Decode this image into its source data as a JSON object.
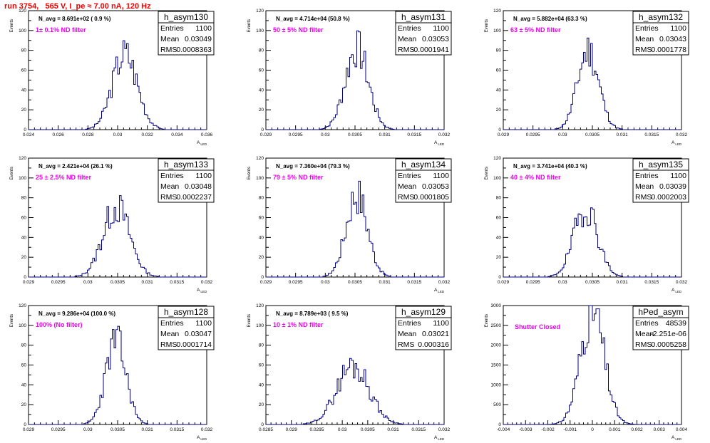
{
  "run_label": "run 3754,   565 V, I_pe ≈ 7.00 nA, 120 Hz",
  "chart_data": [
    {
      "type": "bar",
      "name": "h_asym130",
      "n_avg_text": "N_avg = 8.691e+02 ( 0.9 %)",
      "filter_text": "1± 0.1% ND filter",
      "stats": {
        "Entries": "1100",
        "Mean": "0.03049",
        "RMS": "0.0008363"
      },
      "xlabel": "A",
      "xlabel_sub": "LED",
      "ylabel": "Events",
      "xlim": [
        0.024,
        0.036
      ],
      "ylim": [
        0,
        120
      ],
      "xticks": [
        "0.024",
        "0.026",
        "0.028",
        "0.03",
        "0.032",
        "0.034",
        "0.036"
      ],
      "yticks": [
        "0",
        "20",
        "40",
        "60",
        "80",
        "100",
        "120"
      ],
      "x_center": 0.03049,
      "width": 0.0008363,
      "peak": 77,
      "seed": 3
    },
    {
      "type": "bar",
      "name": "h_asym131",
      "n_avg_text": "N_avg = 4.714e+04 (50.8 %)",
      "filter_text": "50 ± 5% ND filter",
      "stats": {
        "Entries": "1100",
        "Mean": "0.03053",
        "RMS": "0.0001941"
      },
      "xlabel": "A",
      "xlabel_sub": "LED",
      "ylabel": "Events",
      "xlim": [
        0.029,
        0.032
      ],
      "ylim": [
        0,
        120
      ],
      "xticks": [
        "0.029",
        "0.0295",
        "0.03",
        "0.0305",
        "0.031",
        "0.0315",
        "0.032"
      ],
      "yticks": [
        "0",
        "20",
        "40",
        "60",
        "80",
        "100",
        "120"
      ],
      "x_center": 0.03053,
      "width": 0.0001941,
      "peak": 82,
      "seed": 7
    },
    {
      "type": "bar",
      "name": "h_asym132",
      "n_avg_text": "N_avg = 5.882e+04 (63.3 %)",
      "filter_text": "63 ± 5% ND filter",
      "stats": {
        "Entries": "1100",
        "Mean": "0.03043",
        "RMS": "0.0001778"
      },
      "xlabel": "A",
      "xlabel_sub": "LED",
      "ylabel": "Events",
      "xlim": [
        0.029,
        0.032
      ],
      "ylim": [
        0,
        120
      ],
      "xticks": [
        "0.029",
        "0.0295",
        "0.03",
        "0.0305",
        "0.031",
        "0.0315",
        "0.032"
      ],
      "yticks": [
        "0",
        "20",
        "40",
        "60",
        "80",
        "100",
        "120"
      ],
      "x_center": 0.03043,
      "width": 0.0001778,
      "peak": 80,
      "seed": 11
    },
    {
      "type": "bar",
      "name": "h_asym133",
      "n_avg_text": "N_avg = 2.421e+04 (26.1 %)",
      "filter_text": "25 ± 2.5% ND filter",
      "stats": {
        "Entries": "1100",
        "Mean": "0.03048",
        "RMS": "0.0002237"
      },
      "xlabel": "A",
      "xlabel_sub": "LED",
      "ylabel": "Events",
      "xlim": [
        0.029,
        0.032
      ],
      "ylim": [
        0,
        120
      ],
      "xticks": [
        "0.029",
        "0.0295",
        "0.03",
        "0.0305",
        "0.031",
        "0.0315",
        "0.032"
      ],
      "yticks": [
        "0",
        "20",
        "40",
        "60",
        "80",
        "100",
        "120"
      ],
      "x_center": 0.03048,
      "width": 0.0002237,
      "peak": 71,
      "seed": 13
    },
    {
      "type": "bar",
      "name": "h_asym134",
      "n_avg_text": "N_avg = 7.360e+04 (79.3 %)",
      "filter_text": "79 ± 5% ND filter",
      "stats": {
        "Entries": "1100",
        "Mean": "0.03053",
        "RMS": "0.0001805"
      },
      "xlabel": "A",
      "xlabel_sub": "LED",
      "ylabel": "Events",
      "xlim": [
        0.029,
        0.032
      ],
      "ylim": [
        0,
        120
      ],
      "xticks": [
        "0.029",
        "0.0295",
        "0.03",
        "0.0305",
        "0.031",
        "0.0315",
        "0.032"
      ],
      "yticks": [
        "0",
        "20",
        "40",
        "60",
        "80",
        "100",
        "120"
      ],
      "x_center": 0.03053,
      "width": 0.0001805,
      "peak": 84,
      "seed": 17
    },
    {
      "type": "bar",
      "name": "h_asym135",
      "n_avg_text": "N_avg = 3.741e+04 (40.3 %)",
      "filter_text": "40 ± 4% ND filter",
      "stats": {
        "Entries": "1100",
        "Mean": "0.03039",
        "RMS": "0.0002003"
      },
      "xlabel": "A",
      "xlabel_sub": "LED",
      "ylabel": "Events",
      "xlim": [
        0.029,
        0.032
      ],
      "ylim": [
        0,
        120
      ],
      "xticks": [
        "0.029",
        "0.0295",
        "0.03",
        "0.0305",
        "0.031",
        "0.0315",
        "0.032"
      ],
      "yticks": [
        "0",
        "20",
        "40",
        "60",
        "80",
        "100",
        "120"
      ],
      "x_center": 0.03039,
      "width": 0.0002003,
      "peak": 70,
      "seed": 19
    },
    {
      "type": "bar",
      "name": "h_asym128",
      "n_avg_text": "N_avg = 9.286e+04 (100.0 %)",
      "filter_text": "100% (No filter)",
      "stats": {
        "Entries": "1100",
        "Mean": "0.03047",
        "RMS": "0.0001714"
      },
      "xlabel": "A",
      "xlabel_sub": "LED",
      "ylabel": "Events",
      "xlim": [
        0.029,
        0.032
      ],
      "ylim": [
        0,
        120
      ],
      "xticks": [
        "0.029",
        "0.0295",
        "0.03",
        "0.0305",
        "0.031",
        "0.0315",
        "0.032"
      ],
      "yticks": [
        "0",
        "20",
        "40",
        "60",
        "80",
        "100",
        "120"
      ],
      "x_center": 0.03047,
      "width": 0.0001714,
      "peak": 84,
      "seed": 23
    },
    {
      "type": "bar",
      "name": "h_asym129",
      "n_avg_text": "N_avg = 8.789e+03 ( 9.5 %)",
      "filter_text": "10 ± 1% ND filter",
      "stats": {
        "Entries": "1100",
        "Mean": "0.03021",
        "RMS": "0.000316"
      },
      "xlabel": "A",
      "xlabel_sub": "LED",
      "ylabel": "Events",
      "xlim": [
        0.0285,
        0.032
      ],
      "ylim": [
        0,
        120
      ],
      "xticks": [
        "0.0285",
        "0.029",
        "0.0295",
        "0.03",
        "0.0305",
        "0.031",
        "0.0315",
        "0.032"
      ],
      "yticks": [
        "0",
        "20",
        "40",
        "60",
        "80",
        "100",
        "120"
      ],
      "x_center": 0.03021,
      "width": 0.000316,
      "peak": 60,
      "seed": 29
    },
    {
      "type": "bar",
      "name": "hPed_asym",
      "n_avg_text": "",
      "filter_text": "Shutter Closed",
      "stats": {
        "Entries": "48539",
        "Mean": "-2.251e-06",
        "RMS": "0.0005258"
      },
      "xlabel": "A",
      "xlabel_sub": "LED",
      "ylabel": "Events",
      "xlim": [
        -0.004,
        0.004
      ],
      "ylim": [
        0,
        3000
      ],
      "xticks": [
        "-0.004",
        "-0.003",
        "-0.002",
        "-0.001",
        "0",
        "0.001",
        "0.002",
        "0.003",
        "0.004"
      ],
      "yticks": [
        "0",
        "500",
        "1000",
        "1500",
        "2000",
        "2500",
        "3000"
      ],
      "x_center": -2.251e-06,
      "width": 0.0005258,
      "peak": 2900,
      "seed": 31
    }
  ]
}
